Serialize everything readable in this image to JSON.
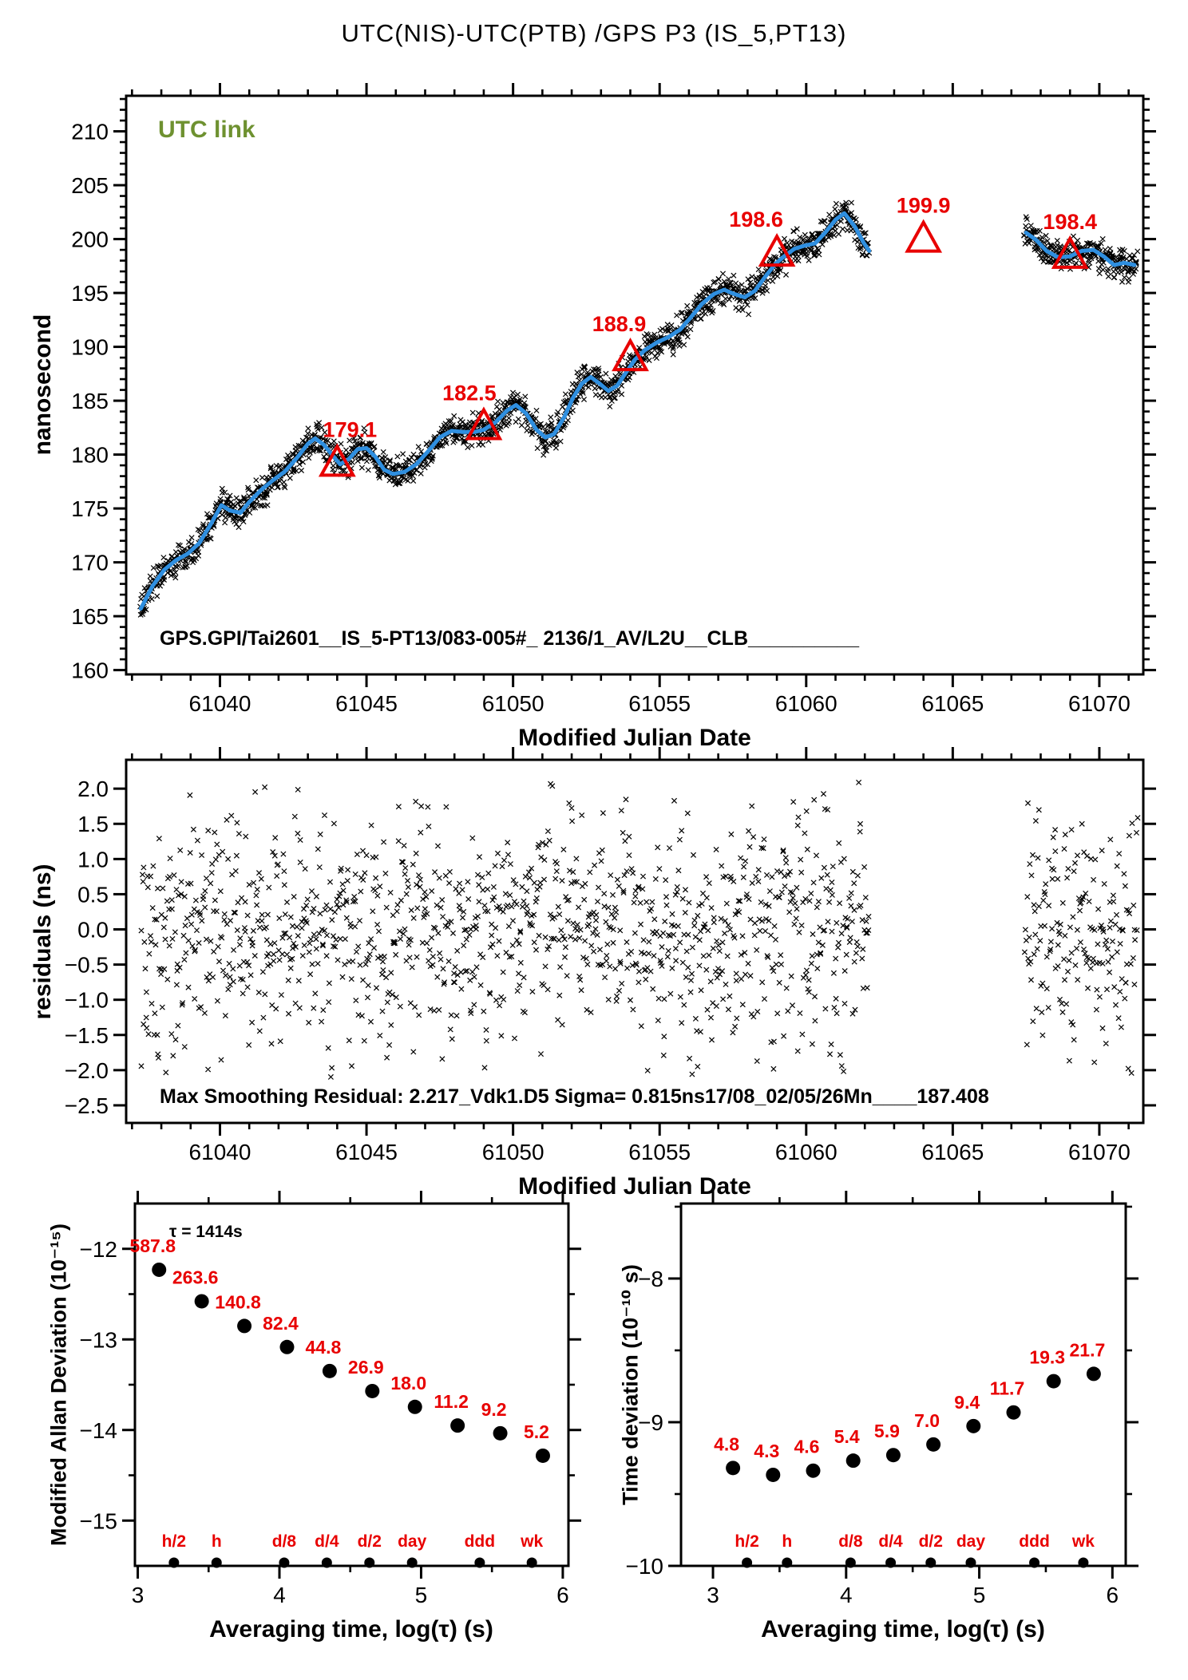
{
  "title": "UTC(NIS)-UTC(PTB)  /GPS  P3  (IS_5,PT13)",
  "colors": {
    "red": "#e80000",
    "blue": "#2f8fe0",
    "green": "#6e9130",
    "black": "#000000"
  },
  "chart_data": [
    {
      "type": "scatter",
      "name": "utc-difference-vs-mjd",
      "title_annotation": "UTC link",
      "ylabel": "nanosecond",
      "xlabel": "Modified Julian Date",
      "footnote": "GPS.GPI/Tai2601__IS_5-PT13/083-005#_  2136/1_AV/L2U__CLB__________",
      "xlim": [
        61036.8,
        61071.5
      ],
      "ylim": [
        159.6,
        213.3
      ],
      "x_ticks": [
        61040,
        61045,
        61050,
        61055,
        61060,
        61065,
        61070
      ],
      "y_ticks": [
        160,
        165,
        170,
        175,
        180,
        185,
        190,
        195,
        200,
        205,
        210
      ],
      "grid": false,
      "legend": "none",
      "data_gap": [
        61062.2,
        61067.45
      ],
      "segments": [
        [
          61037.3,
          61062.15
        ],
        [
          61067.45,
          61071.3
        ]
      ],
      "series": [
        {
          "name": "gps-p3-measurements",
          "kind": "cross-scatter",
          "marker": "x",
          "color": "#000000",
          "generator": {
            "seed": 1311,
            "sigma": 0.72,
            "clip": 1.9,
            "step_days": 0.028,
            "per_step": 2
          }
        },
        {
          "name": "vondrak-smoothed-line",
          "kind": "line",
          "color": "#2f8fe0",
          "width": 5,
          "points_pre_gap": [
            [
              61037.3,
              165.7
            ],
            [
              61037.7,
              167.8
            ],
            [
              61038.1,
              169.3
            ],
            [
              61038.5,
              170.2
            ],
            [
              61038.9,
              170.8
            ],
            [
              61039.3,
              171.8
            ],
            [
              61039.7,
              173.6
            ],
            [
              61040.05,
              175.3
            ],
            [
              61040.35,
              174.8
            ],
            [
              61040.7,
              174.6
            ],
            [
              61041.0,
              175.6
            ],
            [
              61041.4,
              176.7
            ],
            [
              61041.8,
              177.6
            ],
            [
              61042.2,
              178.4
            ],
            [
              61042.6,
              179.6
            ],
            [
              61043.0,
              181.0
            ],
            [
              61043.25,
              181.5
            ],
            [
              61043.55,
              180.9
            ],
            [
              61043.85,
              179.9
            ],
            [
              61044.1,
              179.1
            ],
            [
              61044.4,
              179.6
            ],
            [
              61044.7,
              180.5
            ],
            [
              61045.0,
              180.6
            ],
            [
              61045.3,
              179.8
            ],
            [
              61045.6,
              178.6
            ],
            [
              61045.9,
              178.2
            ],
            [
              61046.3,
              178.4
            ],
            [
              61046.7,
              179.1
            ],
            [
              61047.1,
              180.3
            ],
            [
              61047.5,
              181.6
            ],
            [
              61047.9,
              182.2
            ],
            [
              61048.3,
              182.1
            ],
            [
              61048.7,
              182.1
            ],
            [
              61049.0,
              182.3
            ],
            [
              61049.4,
              183.0
            ],
            [
              61049.8,
              184.1
            ],
            [
              61050.1,
              184.6
            ],
            [
              61050.45,
              183.8
            ],
            [
              61050.8,
              182.3
            ],
            [
              61051.1,
              181.6
            ],
            [
              61051.4,
              181.9
            ],
            [
              61051.75,
              183.5
            ],
            [
              61052.05,
              185.3
            ],
            [
              61052.35,
              186.6
            ],
            [
              61052.65,
              187.2
            ],
            [
              61052.95,
              186.6
            ],
            [
              61053.25,
              185.9
            ],
            [
              61053.55,
              186.4
            ],
            [
              61053.85,
              187.6
            ],
            [
              61054.15,
              188.8
            ],
            [
              61054.5,
              189.7
            ],
            [
              61054.9,
              190.4
            ],
            [
              61055.3,
              190.9
            ],
            [
              61055.7,
              191.6
            ],
            [
              61056.05,
              192.7
            ],
            [
              61056.45,
              194.0
            ],
            [
              61056.85,
              194.9
            ],
            [
              61057.2,
              195.3
            ],
            [
              61057.55,
              194.9
            ],
            [
              61057.9,
              194.6
            ],
            [
              61058.25,
              195.2
            ],
            [
              61058.6,
              196.5
            ],
            [
              61058.95,
              197.7
            ],
            [
              61059.25,
              198.4
            ],
            [
              61059.6,
              199.1
            ],
            [
              61059.95,
              199.4
            ],
            [
              61060.3,
              199.6
            ],
            [
              61060.65,
              200.6
            ],
            [
              61061.0,
              201.8
            ],
            [
              61061.3,
              202.4
            ],
            [
              61061.65,
              201.2
            ],
            [
              61061.95,
              199.7
            ],
            [
              61062.15,
              198.9
            ]
          ],
          "points_post_gap": [
            [
              61067.5,
              200.6
            ],
            [
              61067.85,
              199.9
            ],
            [
              61068.2,
              198.9
            ],
            [
              61068.6,
              198.3
            ],
            [
              61069.0,
              198.4
            ],
            [
              61069.4,
              198.9
            ],
            [
              61069.8,
              199.0
            ],
            [
              61070.15,
              198.4
            ],
            [
              61070.5,
              197.6
            ],
            [
              61070.85,
              197.8
            ],
            [
              61071.2,
              197.6
            ]
          ]
        },
        {
          "name": "utc-link-5day-points",
          "kind": "open-triangle",
          "color": "#e80000",
          "points": [
            {
              "mjd": 61044,
              "ns": 179.1,
              "label": "179.1",
              "label_dx": 16
            },
            {
              "mjd": 61049,
              "ns": 182.5,
              "label": "182.5",
              "label_dx": -18
            },
            {
              "mjd": 61054,
              "ns": 188.9,
              "label": "188.9",
              "label_dx": -14
            },
            {
              "mjd": 61059,
              "ns": 198.6,
              "label": "198.6",
              "label_dx": -26
            },
            {
              "mjd": 61064,
              "ns": 199.9,
              "label": "199.9",
              "label_dx": 0
            },
            {
              "mjd": 61069,
              "ns": 198.4,
              "label": "198.4",
              "label_dx": 0
            }
          ]
        }
      ]
    },
    {
      "type": "scatter",
      "name": "smoothing-residuals-vs-mjd",
      "ylabel": "residuals (ns)",
      "xlabel": "Modified Julian Date",
      "annotation": "Max Smoothing Residual: 2.217_Vdk1.D5  Sigma= 0.815ns17/08_02/05/26Mn____187.408",
      "xlim": [
        61036.8,
        61071.5
      ],
      "ylim": [
        -2.75,
        2.41
      ],
      "x_ticks": [
        61040,
        61045,
        61050,
        61055,
        61060,
        61065,
        61070
      ],
      "y_ticks": [
        2.0,
        1.5,
        1.0,
        0.5,
        0.0,
        -0.5,
        -1.0,
        -1.5,
        -2.0,
        -2.5
      ],
      "grid": false,
      "data_gap": [
        61062.2,
        61067.45
      ],
      "segments": [
        [
          61037.3,
          61062.15
        ],
        [
          61067.45,
          61071.3
        ]
      ],
      "series": [
        {
          "name": "residual-scatter",
          "kind": "cross-scatter",
          "marker": "x",
          "color": "#000000",
          "generator": {
            "seed": 9257,
            "sigma": 0.85,
            "clip": 2.12,
            "step_days": 0.021,
            "per_step": 1,
            "mean": 0
          }
        }
      ]
    },
    {
      "type": "scatter",
      "name": "modified-allan-deviation",
      "ylabel": "Modified Allan Deviation (10⁻¹⁵)",
      "xlabel": "Averaging time, log(τ) (s)",
      "note": "τ = 1414s",
      "unit_exponent": -15,
      "xlim": [
        2.98,
        6.04
      ],
      "ylim": [
        -15.5,
        -11.5
      ],
      "x_ticks": [
        3,
        4,
        5,
        6
      ],
      "y_ticks": [
        -12,
        -13,
        -14,
        -15
      ],
      "marker": "filled-circle",
      "value_color": "#e80000",
      "log_tau": [
        3.1504,
        3.4514,
        3.7524,
        4.0534,
        4.3545,
        4.6555,
        4.9565,
        5.2575,
        5.5585,
        5.8595
      ],
      "values": [
        587.8,
        263.6,
        140.8,
        82.4,
        44.8,
        26.9,
        18.0,
        11.2,
        9.2,
        5.2
      ],
      "duration_marks": {
        "labels": [
          "h/2",
          "h",
          "d/8",
          "d/4",
          "d/2",
          "day",
          "ddd",
          "wk"
        ],
        "log_tau": [
          3.2553,
          3.5563,
          4.0334,
          4.3345,
          4.6355,
          4.9365,
          5.4137,
          5.7817
        ],
        "color": "#e80000"
      }
    },
    {
      "type": "scatter",
      "name": "time-deviation",
      "ylabel": "Time deviation (10⁻¹⁰ s)",
      "xlabel": "Averaging time, log(τ) (s)",
      "unit_exponent": -10,
      "xlim": [
        2.76,
        6.1
      ],
      "ylim": [
        -10.0,
        -7.478
      ],
      "x_ticks": [
        3,
        4,
        5,
        6
      ],
      "y_ticks": [
        -8,
        -9,
        -10
      ],
      "marker": "filled-circle",
      "value_color": "#e80000",
      "log_tau": [
        3.1504,
        3.4514,
        3.7524,
        4.0534,
        4.3545,
        4.6555,
        4.9565,
        5.2575,
        5.5585,
        5.8595
      ],
      "values": [
        4.8,
        4.3,
        4.6,
        5.4,
        5.9,
        7.0,
        9.4,
        11.7,
        19.3,
        21.7
      ],
      "duration_marks": {
        "labels": [
          "h/2",
          "h",
          "d/8",
          "d/4",
          "d/2",
          "day",
          "ddd",
          "wk"
        ],
        "log_tau": [
          3.2553,
          3.5563,
          4.0334,
          4.3345,
          4.6355,
          4.9365,
          5.4137,
          5.7817
        ],
        "color": "#e80000"
      }
    }
  ]
}
